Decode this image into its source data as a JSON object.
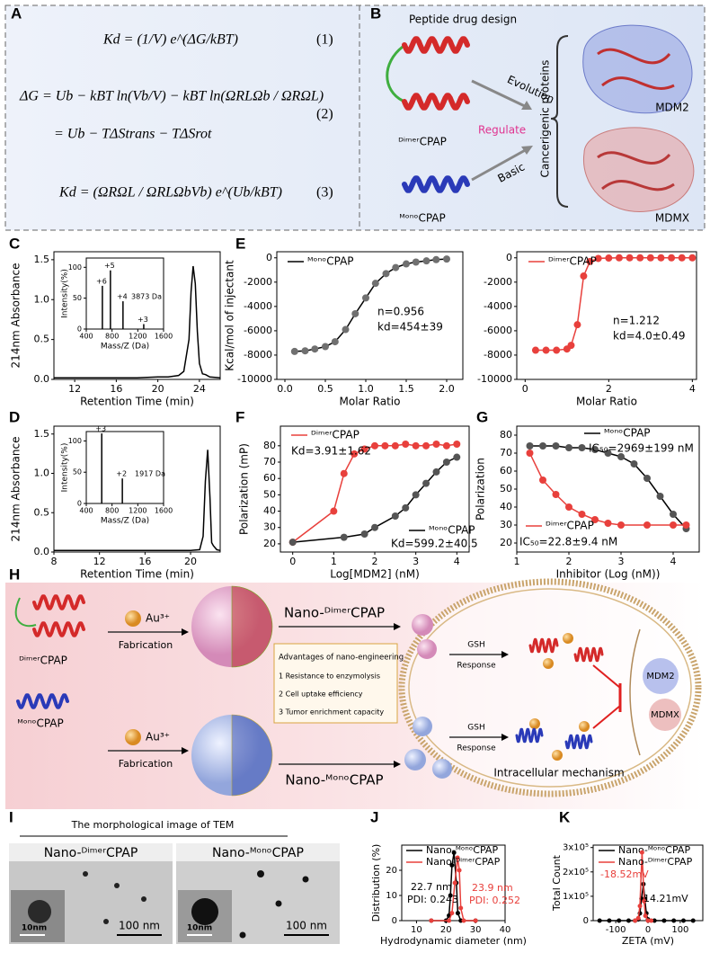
{
  "panel_letters": [
    "A",
    "B",
    "C",
    "D",
    "E",
    "F",
    "G",
    "H",
    "I",
    "J",
    "K"
  ],
  "panel_a": {
    "equations": [
      "Kd = (1/V) e^(ΔG/kBT)",
      "ΔG = Ub − kBT ln(Vb/V) − kBT ln(ΩRLΩb / ΩRΩL)",
      "= Ub − TΔStrans − TΔSrot",
      "Kd = (ΩRΩL / ΩRLΩbVb) e^(Ub/kBT)"
    ],
    "numbers": [
      "(1)",
      "(2)",
      "(3)"
    ]
  },
  "panel_b": {
    "title": "Peptide drug design",
    "dimer": "ᴰⁱᵐᵉʳCPAP",
    "mono": "ᴹᵒⁿᵒCPAP",
    "evolution": "Evolution",
    "regulate": "Regulate",
    "basic": "Basic",
    "target_group": "Cancerigenic proteins",
    "targets": [
      "MDM2",
      "MDMX"
    ]
  },
  "panel_h": {
    "dimer": "ᴰⁱᵐᵉʳCPAP",
    "mono": "ᴹᵒⁿᵒCPAP",
    "ion": [
      "Au³⁺",
      "Au³⁺"
    ],
    "step": [
      "Fabrication",
      "Fabrication"
    ],
    "nano": [
      "Nano-ᴰⁱᵐᵉʳCPAP",
      "Nano-ᴹᵒⁿᵒCPAP"
    ],
    "advantages_title": "Advantages of nano-engineering",
    "advantages": [
      "1 Resistance to enzymolysis",
      "2 Cell uptake efficiency",
      "3 Tumor enrichment capacity"
    ],
    "trigger": [
      "GSH",
      "GSH"
    ],
    "response": [
      "Response",
      "Response"
    ],
    "targets": [
      "MDM2",
      "MDMX"
    ],
    "caption": "Intracellular mechanism"
  },
  "panel_i": {
    "title": "The morphological image of TEM",
    "images": [
      {
        "label": "Nano-ᴰⁱᵐᵉʳCPAP",
        "inset_scale": "10nm",
        "scale": "100 nm"
      },
      {
        "label": "Nano-ᴹᵒⁿᵒCPAP",
        "inset_scale": "10nm",
        "scale": "100 nm"
      }
    ]
  },
  "chart_data": [
    {
      "type": "line",
      "xlabel": "Retention Time (min)",
      "ylabel": "214nm Absorbance",
      "xlim": [
        10,
        26
      ],
      "ylim": [
        0,
        1.6
      ],
      "xticks": [
        12,
        16,
        20,
        24
      ],
      "yticks": [
        {
          "value": 0,
          "label": "0.0"
        },
        0.5,
        {
          "value": 1,
          "label": "1.0"
        },
        1.5
      ],
      "series": [
        {
          "color": "#000000",
          "x": [
            10,
            12,
            14,
            16,
            18,
            20,
            21,
            22,
            22.5,
            23,
            23.2,
            23.4,
            23.6,
            23.8,
            24,
            24.3,
            24.6,
            25,
            26
          ],
          "values": [
            0.02,
            0.02,
            0.02,
            0.02,
            0.02,
            0.03,
            0.03,
            0.05,
            0.1,
            0.5,
            1.1,
            1.42,
            1.2,
            0.6,
            0.2,
            0.07,
            0.06,
            0.03,
            0.02
          ]
        }
      ]
    },
    {
      "type": "stem",
      "xlabel": "Mass/Z (Da)",
      "ylabel": "Intensity(%)",
      "xlim": [
        400,
        1600
      ],
      "ylim": [
        0,
        115
      ],
      "xticks": [
        400,
        800,
        1200,
        1600
      ],
      "yticks": [
        0,
        50,
        100
      ],
      "series": [
        {
          "color": "#000000",
          "x": [
            650,
            775,
            970,
            1292
          ],
          "values": [
            70,
            95,
            45,
            8
          ]
        }
      ],
      "peak_labels": [
        "+6",
        "+5",
        "+4",
        "+3"
      ],
      "annotations": [
        {
          "text": "3873 Da",
          "color": "#000000"
        }
      ]
    },
    {
      "type": "line",
      "xlabel": "Molar Ratio",
      "ylabel": "Kcal/mol of injectant",
      "xlim": [
        -0.1,
        2.2
      ],
      "ylim": [
        -10000,
        500
      ],
      "xticks": [
        {
          "value": 0,
          "label": "0.0"
        },
        0.5,
        {
          "value": 1,
          "label": "1.0"
        },
        1.5,
        {
          "value": 2,
          "label": "2.0"
        }
      ],
      "yticks": [
        -10000,
        -8000,
        -6000,
        -4000,
        -2000,
        0
      ],
      "series": [
        {
          "name": "ᴹᵒⁿᵒCPAP",
          "color": "#707070",
          "line_color": "#000000",
          "markers": true,
          "x": [
            0.12,
            0.25,
            0.37,
            0.5,
            0.62,
            0.75,
            0.87,
            1.0,
            1.12,
            1.25,
            1.37,
            1.5,
            1.62,
            1.75,
            1.87,
            2.0
          ],
          "values": [
            -7700,
            -7650,
            -7500,
            -7300,
            -6900,
            -5900,
            -4600,
            -3300,
            -2100,
            -1300,
            -800,
            -500,
            -350,
            -250,
            -150,
            -100
          ]
        }
      ],
      "annotations": [
        {
          "text": "n=0.956",
          "color": "#000000"
        },
        {
          "text": "kd=454±39",
          "color": "#000000"
        }
      ]
    },
    {
      "type": "line",
      "xlabel": "Molar Ratio",
      "xlim": [
        -0.2,
        4.1
      ],
      "ylim": [
        -10000,
        500
      ],
      "xticks": [
        0,
        2,
        4
      ],
      "yticks": [
        -10000,
        -8000,
        -6000,
        -4000,
        -2000,
        0
      ],
      "series": [
        {
          "name": "ᴰⁱᵐᵉʳCPAP",
          "color": "#e8403c",
          "line_color": "#e8403c",
          "markers": true,
          "x": [
            0.25,
            0.5,
            0.75,
            1.0,
            1.1,
            1.25,
            1.4,
            1.55,
            1.75,
            2.0,
            2.25,
            2.5,
            2.75,
            3.0,
            3.25,
            3.5,
            3.75,
            4.0
          ],
          "values": [
            -7600,
            -7600,
            -7600,
            -7500,
            -7200,
            -5500,
            -1500,
            -300,
            -50,
            -20,
            0,
            0,
            0,
            0,
            0,
            0,
            0,
            0
          ]
        }
      ],
      "annotations": [
        {
          "text": "n=1.212",
          "color": "#000000"
        },
        {
          "text": "kd=4.0±0.49",
          "color": "#000000"
        }
      ]
    },
    {
      "type": "line",
      "xlabel": "Retention Time (min)",
      "ylabel": "214nm Absorbance",
      "xlim": [
        8,
        22.6
      ],
      "ylim": [
        0,
        1.6
      ],
      "xticks": [
        8,
        12,
        16,
        20
      ],
      "yticks": [
        {
          "value": 0,
          "label": "0.0"
        },
        0.5,
        {
          "value": 1,
          "label": "1.0"
        },
        1.5
      ],
      "series": [
        {
          "color": "#000000",
          "x": [
            8,
            10,
            12,
            14,
            16,
            18,
            20,
            20.8,
            21.1,
            21.3,
            21.5,
            21.7,
            21.85,
            22,
            22.3,
            22.6
          ],
          "values": [
            0.02,
            0.02,
            0.02,
            0.02,
            0.02,
            0.02,
            0.02,
            0.03,
            0.2,
            0.9,
            1.3,
            0.7,
            0.12,
            0.08,
            0.03,
            0.02
          ]
        }
      ]
    },
    {
      "type": "stem",
      "xlabel": "Mass/Z (Da)",
      "ylabel": "Intensity(%)",
      "xlim": [
        400,
        1600
      ],
      "ylim": [
        0,
        115
      ],
      "xticks": [
        400,
        800,
        1200,
        1600
      ],
      "yticks": [
        0,
        50,
        100
      ],
      "series": [
        {
          "color": "#000000",
          "x": [
            640,
            960
          ],
          "values": [
            112,
            40
          ]
        }
      ],
      "peak_labels": [
        "+3",
        "+2"
      ],
      "annotations": [
        {
          "text": "1917 Da",
          "color": "#000000"
        }
      ]
    },
    {
      "type": "line",
      "xlabel": "Log[MDM2] (nM)",
      "ylabel": "Polarization (mP)",
      "xlim": [
        -0.3,
        4.3
      ],
      "ylim": [
        15,
        92
      ],
      "xticks": [
        0,
        1,
        2,
        3,
        4
      ],
      "yticks": [
        20,
        30,
        40,
        50,
        60,
        70,
        80
      ],
      "series": [
        {
          "name": "ᴰⁱᵐᵉʳCPAP",
          "color": "#e8403c",
          "line_color": "#e8403c",
          "markers": true,
          "x": [
            0,
            1,
            1.25,
            1.5,
            1.75,
            2,
            2.25,
            2.5,
            2.75,
            3,
            3.25,
            3.5,
            3.75,
            4
          ],
          "values": [
            21,
            40,
            63,
            75,
            78,
            80,
            80,
            80,
            81,
            80,
            80,
            81,
            80,
            81
          ]
        },
        {
          "name": "ᴹᵒⁿᵒCPAP",
          "color": "#555555",
          "line_color": "#000000",
          "markers": true,
          "x": [
            0,
            1.25,
            1.75,
            2,
            2.5,
            2.75,
            3,
            3.25,
            3.5,
            3.75,
            4
          ],
          "values": [
            21,
            24,
            26,
            30,
            37,
            42,
            50,
            57,
            64,
            70,
            73
          ]
        }
      ],
      "annotations": [
        {
          "text": "Kd=3.91±1.62",
          "color": "#000000"
        },
        {
          "text": "Kd=599.2±40.5",
          "color": "#000000"
        }
      ]
    },
    {
      "type": "line",
      "xlabel": "Inhibitor (Log (nM))",
      "ylabel": "Polarization",
      "xlim": [
        1,
        4.5
      ],
      "ylim": [
        15,
        85
      ],
      "xticks": [
        1,
        2,
        3,
        4
      ],
      "yticks": [
        20,
        30,
        40,
        50,
        60,
        70,
        80
      ],
      "series": [
        {
          "name": "ᴹᵒⁿᵒCPAP",
          "color": "#555555",
          "line_color": "#000000",
          "markers": true,
          "x": [
            1.25,
            1.5,
            1.75,
            2,
            2.25,
            2.5,
            2.75,
            3,
            3.25,
            3.5,
            3.75,
            4,
            4.25
          ],
          "values": [
            74,
            74,
            74,
            73,
            73,
            72,
            70,
            68,
            64,
            56,
            46,
            36,
            28
          ]
        },
        {
          "name": "ᴰⁱᵐᵉʳCPAP",
          "color": "#e8403c",
          "line_color": "#e8403c",
          "markers": true,
          "x": [
            1.25,
            1.5,
            1.75,
            2,
            2.25,
            2.5,
            2.75,
            3,
            3.5,
            4,
            4.25
          ],
          "values": [
            70,
            55,
            47,
            40,
            36,
            33,
            31,
            30,
            30,
            30,
            30
          ]
        }
      ],
      "annotations": [
        {
          "text": "IC₅₀=2969±199 nM",
          "color": "#000000"
        },
        {
          "text": "IC₅₀=22.8±9.4 nM",
          "color": "#000000"
        }
      ]
    },
    {
      "type": "line",
      "xlabel": "Hydrodynamic diameter (nm)",
      "ylabel": "Distribution (%)",
      "xlim": [
        5,
        40
      ],
      "ylim": [
        0,
        30
      ],
      "xticks": [
        10,
        20,
        30,
        40
      ],
      "yticks": [
        0,
        10,
        20
      ],
      "series": [
        {
          "name": "Nano-ᴹᵒⁿᵒCPAP",
          "color": "#000000",
          "line_color": "#000000",
          "markers": true,
          "x": [
            15,
            20,
            21,
            21.5,
            22,
            22.7,
            23.5,
            24,
            25,
            30
          ],
          "values": [
            0,
            0,
            2,
            10,
            22,
            27,
            15,
            3,
            0,
            0
          ]
        },
        {
          "name": "Nano-ᴰⁱᵐᵉʳCPAP",
          "color": "#e8403c",
          "line_color": "#e8403c",
          "markers": true,
          "x": [
            15,
            21,
            22,
            23,
            23.9,
            24.5,
            25,
            26,
            30
          ],
          "values": [
            0,
            0,
            3,
            15,
            25,
            20,
            5,
            0,
            0
          ]
        }
      ],
      "annotations": [
        {
          "text": "22.7 nm",
          "color": "#000000"
        },
        {
          "text": "PDI: 0.243",
          "color": "#000000"
        },
        {
          "text": "23.9 nm",
          "color": "#e8403c"
        },
        {
          "text": "PDI: 0.252",
          "color": "#e8403c"
        }
      ]
    },
    {
      "type": "line",
      "xlabel": "ZETA (mV)",
      "ylabel": "Total Count",
      "xlim": [
        -170,
        170
      ],
      "ylim": [
        0,
        310000
      ],
      "xticks": [
        -100,
        0,
        100
      ],
      "yticks": [
        0,
        {
          "value": 100000,
          "label": "1x10⁵"
        },
        {
          "value": 200000,
          "label": "2x10⁵"
        },
        {
          "value": 300000,
          "label": "3x10⁵"
        }
      ],
      "series": [
        {
          "name": "Nano-ᴹᵒⁿᵒCPAP",
          "color": "#000000",
          "line_color": "#000000",
          "markers": true,
          "x": [
            -150,
            -120,
            -90,
            -60,
            -40,
            -30,
            -25,
            -20,
            -14.21,
            -10,
            -5,
            0,
            20,
            50,
            80,
            110,
            140
          ],
          "values": [
            0,
            0,
            0,
            0,
            0,
            5000,
            30000,
            90000,
            150000,
            90000,
            30000,
            5000,
            0,
            0,
            0,
            0,
            0
          ]
        },
        {
          "name": "Nano-ᴰⁱᵐᵉʳCPAP",
          "color": "#e8403c",
          "line_color": "#e8403c",
          "markers": true,
          "x": [
            -40,
            -30,
            -25,
            -18.52,
            -12,
            -8,
            0,
            10
          ],
          "values": [
            0,
            10000,
            60000,
            280000,
            80000,
            20000,
            0,
            0
          ]
        }
      ],
      "annotations": [
        {
          "text": "-18.52mV",
          "color": "#e8403c"
        },
        {
          "text": "-14.21mV",
          "color": "#000000"
        }
      ]
    }
  ]
}
